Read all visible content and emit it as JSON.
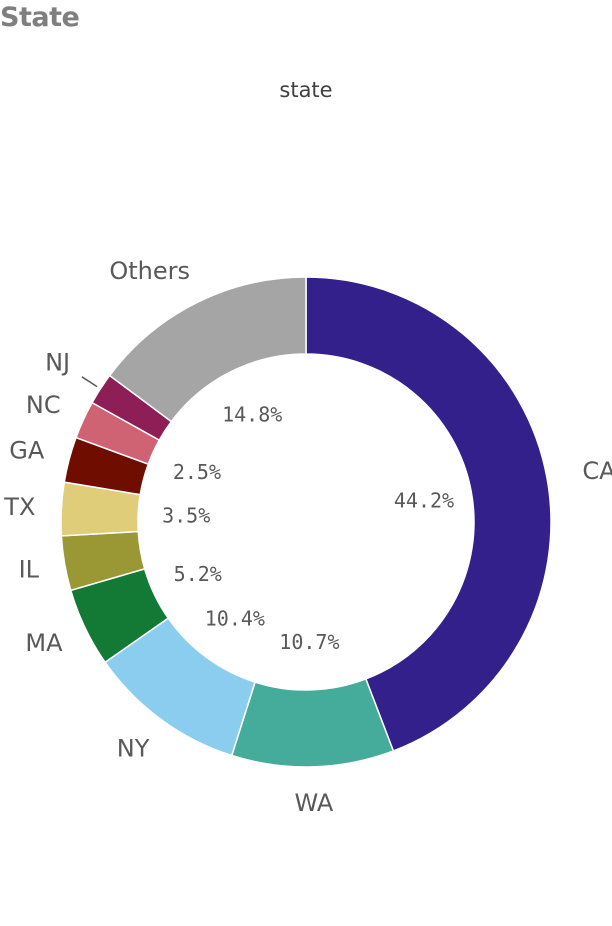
{
  "panel": {
    "title": "State"
  },
  "chart_data": {
    "type": "donut",
    "title": "state",
    "slices": [
      {
        "label": "CA",
        "value": 44.2,
        "pct_label": "44.2%",
        "color": "#33208a"
      },
      {
        "label": "WA",
        "value": 10.7,
        "pct_label": "10.7%",
        "color": "#45ab9b"
      },
      {
        "label": "NY",
        "value": 10.4,
        "pct_label": "10.4%",
        "color": "#8bcdee"
      },
      {
        "label": "MA",
        "value": 5.2,
        "pct_label": "5.2%",
        "color": "#127a34"
      },
      {
        "label": "IL",
        "value": 3.6,
        "pct_label": "",
        "color": "#9a9835"
      },
      {
        "label": "TX",
        "value": 3.5,
        "pct_label": "3.5%",
        "color": "#dfcd7a"
      },
      {
        "label": "GA",
        "value": 3.0,
        "pct_label": "",
        "color": "#6e0d00"
      },
      {
        "label": "NC",
        "value": 2.5,
        "pct_label": "2.5%",
        "color": "#cf6373"
      },
      {
        "label": "NJ",
        "value": 2.1,
        "pct_label": "",
        "color": "#8d1f56"
      },
      {
        "label": "Others",
        "value": 14.8,
        "pct_label": "14.8%",
        "color": "#a5a5a5"
      }
    ],
    "start": "top",
    "direction": "clockwise",
    "legend": "none"
  }
}
